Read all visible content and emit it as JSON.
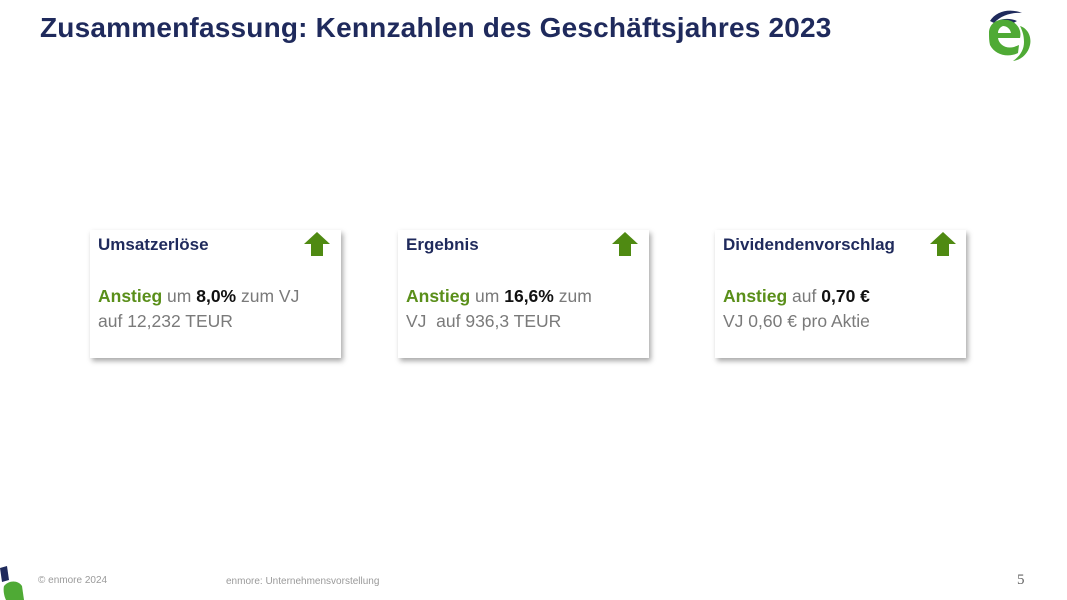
{
  "slide": {
    "title": "Zusammenfassung: Kennzahlen des Geschäftsjahres 2023",
    "colors": {
      "title": "#1f2a5c",
      "highlight": "#5a8f1a",
      "body": "#7a7a7a",
      "arrow": "#4f8a12",
      "logo_blue": "#1f2a5c",
      "logo_green": "#4faa35"
    },
    "logo_icon": "enmore-logo"
  },
  "cards": [
    {
      "title": "Umsatzerlöse",
      "trend_icon": "arrow-up-icon",
      "highlight": "Anstieg",
      "pre": " um ",
      "value": "8,0%",
      "post": " zum VJ",
      "line2": "auf 12,232 TEUR"
    },
    {
      "title": "Ergebnis",
      "trend_icon": "arrow-up-icon",
      "highlight": "Anstieg",
      "pre": " um ",
      "value": "16,6%",
      "post": " zum",
      "line2": "VJ  auf 936,3 TEUR"
    },
    {
      "title": "Dividendenvorschlag",
      "trend_icon": "arrow-up-icon",
      "highlight": "Anstieg",
      "pre": " auf ",
      "value": "0,70 €",
      "post": "",
      "line2": "VJ 0,60 € pro Aktie"
    }
  ],
  "footer": {
    "copyright": "© enmore 2024",
    "center": "enmore: Unternehmensvorstellung",
    "page_number": "5"
  }
}
